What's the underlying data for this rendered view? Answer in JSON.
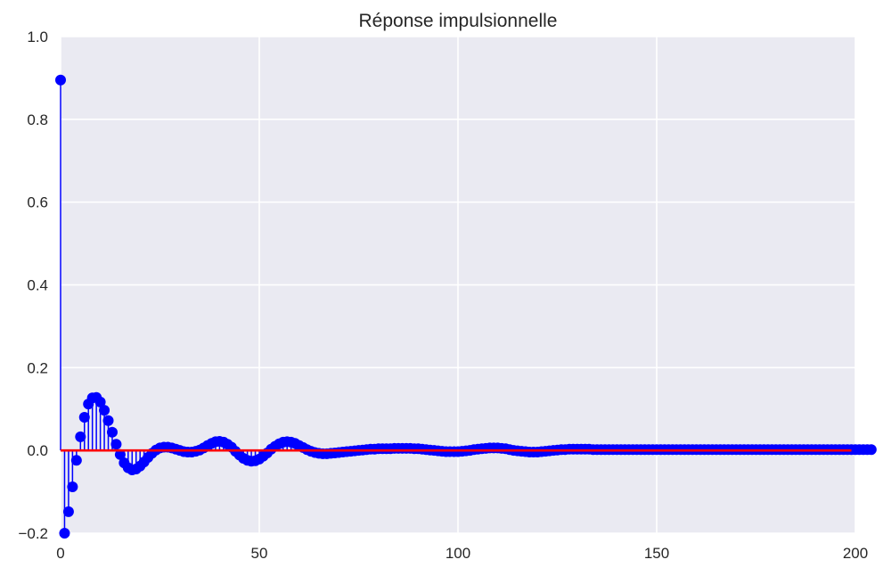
{
  "chart_data": {
    "type": "stem",
    "title": "Réponse impulsionnelle",
    "xlabel": "",
    "ylabel": "",
    "xlim": [
      0,
      200
    ],
    "ylim": [
      -0.2,
      1.0
    ],
    "xticks": [
      "0",
      "50",
      "100",
      "150",
      "200"
    ],
    "yticks": [
      "−0.2",
      "0.0",
      "0.2",
      "0.4",
      "0.6",
      "0.8",
      "1.0"
    ],
    "grid": true,
    "stem_color": "#0000ff",
    "baseline_color": "#ff0000",
    "background_color": "#eaeaf2",
    "samples": {
      "n_start": 0,
      "n_end": 199,
      "values": [
        0.895,
        -0.2,
        -0.148,
        -0.088,
        -0.024,
        0.033,
        0.08,
        0.112,
        0.127,
        0.128,
        0.117,
        0.097,
        0.072,
        0.044,
        0.015,
        -0.01,
        -0.03,
        -0.042,
        -0.047,
        -0.045,
        -0.038,
        -0.028,
        -0.017,
        -0.007,
        0.001,
        0.006,
        0.008,
        0.008,
        0.006,
        0.003,
        0.0,
        -0.003,
        -0.004,
        -0.004,
        -0.002,
        0.001,
        0.006,
        0.012,
        0.017,
        0.021,
        0.022,
        0.02,
        0.015,
        0.008,
        -0.002,
        -0.011,
        -0.019,
        -0.024,
        -0.026,
        -0.025,
        -0.021,
        -0.014,
        -0.006,
        0.003,
        0.01,
        0.016,
        0.02,
        0.021,
        0.02,
        0.017,
        0.012,
        0.007,
        0.002,
        -0.002,
        -0.005,
        -0.007,
        -0.008,
        -0.008,
        -0.007,
        -0.006,
        -0.005,
        -0.004,
        -0.003,
        -0.002,
        -0.001,
        0.0,
        0.001,
        0.002,
        0.003,
        0.003,
        0.004,
        0.004,
        0.004,
        0.004,
        0.005,
        0.005,
        0.005,
        0.005,
        0.005,
        0.004,
        0.004,
        0.003,
        0.002,
        0.001,
        0.0,
        -0.001,
        -0.002,
        -0.003,
        -0.003,
        -0.003,
        -0.003,
        -0.002,
        -0.001,
        0.0,
        0.002,
        0.003,
        0.004,
        0.005,
        0.006,
        0.006,
        0.006,
        0.005,
        0.004,
        0.002,
        0.0,
        -0.001,
        -0.002,
        -0.003,
        -0.004,
        -0.004,
        -0.004,
        -0.003,
        -0.002,
        -0.001,
        0.0,
        0.001,
        0.002,
        0.002,
        0.003,
        0.003,
        0.003,
        0.003,
        0.003,
        0.003,
        0.002,
        0.002,
        0.002,
        0.002,
        0.002,
        0.002,
        0.002,
        0.002,
        0.002,
        0.002,
        0.002,
        0.002,
        0.002,
        0.002,
        0.002,
        0.002,
        0.002,
        0.002,
        0.002,
        0.002,
        0.002,
        0.002,
        0.002,
        0.002,
        0.002,
        0.002,
        0.002,
        0.002,
        0.002,
        0.002,
        0.002,
        0.002,
        0.002,
        0.002,
        0.002,
        0.002,
        0.002,
        0.002,
        0.002,
        0.002,
        0.002,
        0.002,
        0.002,
        0.002,
        0.002,
        0.002,
        0.002,
        0.002,
        0.002,
        0.002,
        0.002,
        0.002,
        0.002,
        0.002,
        0.002,
        0.002,
        0.002,
        0.002,
        0.002,
        0.002,
        0.002,
        0.002,
        0.002,
        0.002,
        0.002,
        0.002,
        0.002,
        0.002,
        0.002,
        0.002,
        0.002
      ]
    }
  }
}
